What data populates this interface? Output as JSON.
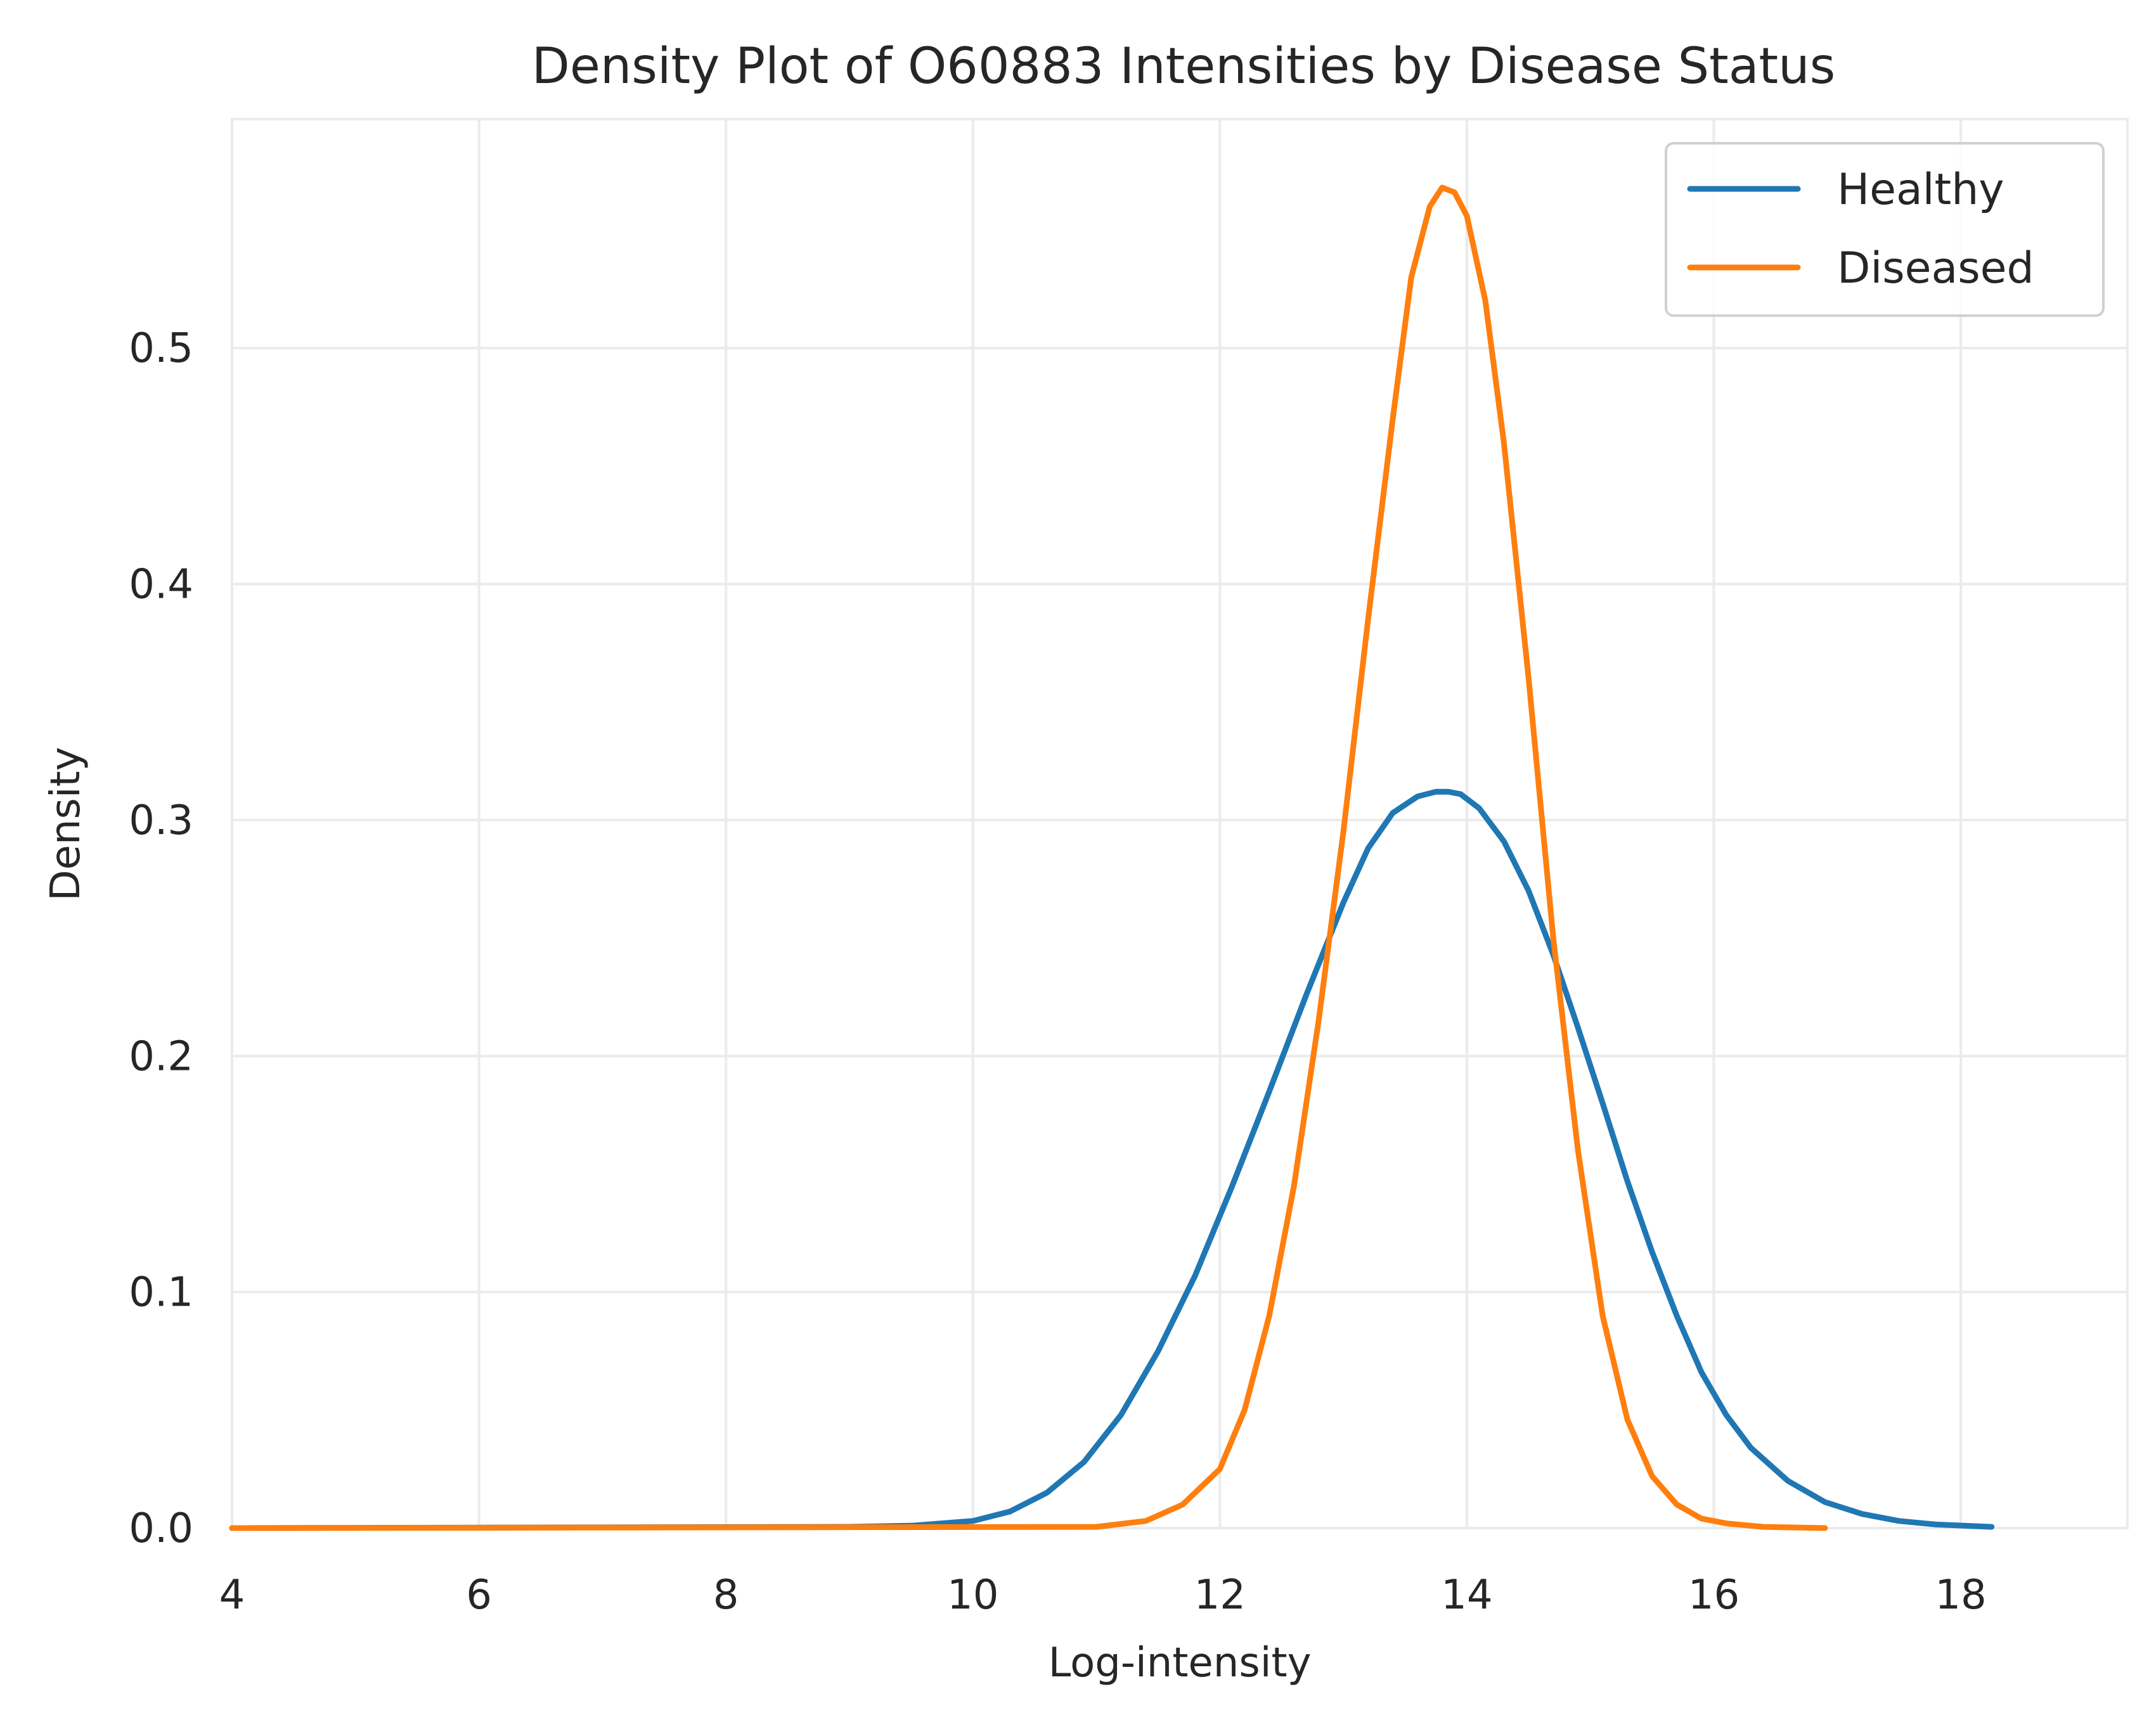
{
  "chart_data": {
    "type": "line",
    "title": "Density Plot of O60883 Intensities by Disease Status",
    "xlabel": "Log-intensity",
    "ylabel": "Density",
    "xlim": [
      4,
      19.35
    ],
    "ylim": [
      0,
      0.597
    ],
    "xticks": [
      4,
      6,
      8,
      10,
      12,
      14,
      16,
      18
    ],
    "yticks": [
      0.0,
      0.1,
      0.2,
      0.3,
      0.4,
      0.5
    ],
    "grid": true,
    "legend_position": "top-right",
    "series": [
      {
        "name": "Healthy",
        "color": "#1f77b4",
        "x": [
          4.0,
          9.0,
          9.5,
          10.0,
          10.3,
          10.6,
          10.9,
          11.2,
          11.5,
          11.8,
          12.1,
          12.4,
          12.7,
          13.0,
          13.2,
          13.4,
          13.6,
          13.75,
          13.85,
          13.95,
          14.1,
          14.3,
          14.5,
          14.7,
          14.9,
          15.1,
          15.3,
          15.5,
          15.7,
          15.9,
          16.1,
          16.3,
          16.6,
          16.9,
          17.2,
          17.5,
          17.8,
          18.25
        ],
        "y": [
          0.0,
          0.0005,
          0.001,
          0.003,
          0.007,
          0.015,
          0.028,
          0.048,
          0.075,
          0.107,
          0.145,
          0.185,
          0.226,
          0.265,
          0.288,
          0.303,
          0.31,
          0.312,
          0.312,
          0.311,
          0.305,
          0.291,
          0.27,
          0.243,
          0.212,
          0.18,
          0.147,
          0.117,
          0.09,
          0.066,
          0.048,
          0.034,
          0.02,
          0.011,
          0.006,
          0.003,
          0.0015,
          0.0005
        ]
      },
      {
        "name": "Diseased",
        "color": "#ff7f0e",
        "x": [
          4.0,
          11.0,
          11.4,
          11.7,
          12.0,
          12.2,
          12.4,
          12.6,
          12.8,
          13.0,
          13.2,
          13.4,
          13.55,
          13.7,
          13.8,
          13.9,
          14.0,
          14.15,
          14.3,
          14.5,
          14.7,
          14.9,
          15.1,
          15.3,
          15.5,
          15.7,
          15.9,
          16.1,
          16.4,
          16.9
        ],
        "y": [
          0.0,
          0.0005,
          0.003,
          0.01,
          0.025,
          0.05,
          0.09,
          0.145,
          0.215,
          0.295,
          0.385,
          0.47,
          0.53,
          0.56,
          0.568,
          0.566,
          0.556,
          0.52,
          0.46,
          0.36,
          0.25,
          0.16,
          0.09,
          0.046,
          0.022,
          0.01,
          0.004,
          0.002,
          0.0005,
          0.0
        ]
      }
    ]
  }
}
